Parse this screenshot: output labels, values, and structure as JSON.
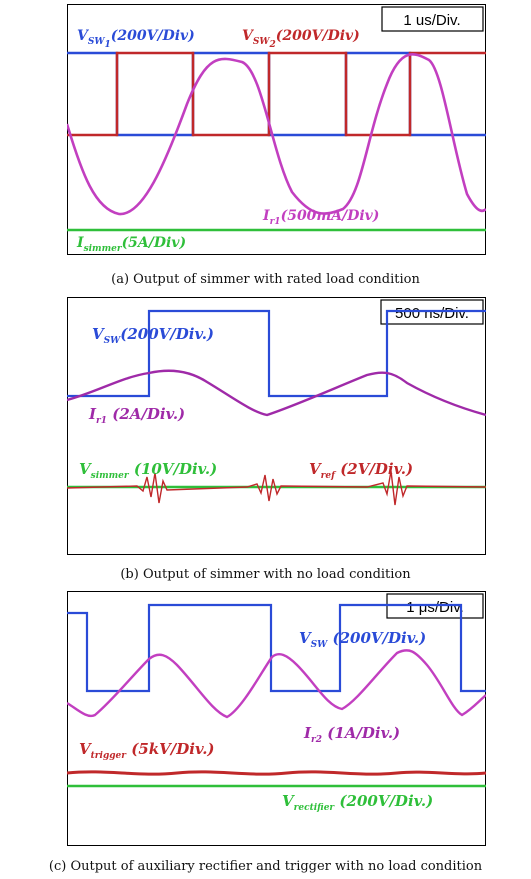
{
  "captions": {
    "a": "(a) Output of simmer with rated load condition",
    "b": "(b) Output of simmer with no load condition",
    "c": "(c) Output of auxiliary rectifier and trigger with no load condition"
  },
  "colors": {
    "blue": "#2a4bd7",
    "red": "#c0282a",
    "magenta": "#c23fc0",
    "purple": "#9f2aa8",
    "green": "#2fbf3a"
  },
  "chart_data": [
    {
      "type": "line",
      "panel": "a",
      "timebase": "1 us/Div.",
      "x_divisions": 10,
      "y_divisions": 8,
      "grid": false,
      "series": [
        {
          "name_main": "V",
          "name_sub": "SW",
          "name_subsub": "1",
          "scale": "(200V/Div)",
          "color": "#2a4bd7",
          "x": [
            0,
            2.6,
            2.6,
            5.0,
            5.0,
            7.4,
            7.4,
            9.8,
            9.8,
            10
          ],
          "y": [
            3.4,
            3.4,
            0.0,
            0.0,
            3.4,
            3.4,
            0.0,
            0.0,
            3.4,
            3.4
          ]
        },
        {
          "name_main": "V",
          "name_sub": "SW",
          "name_subsub": "2",
          "scale": "(200V/Div)",
          "color": "#c0282a",
          "x": [
            0,
            2.6,
            2.6,
            5.0,
            5.0,
            7.4,
            7.4,
            9.8,
            9.8,
            10
          ],
          "y": [
            0.0,
            0.0,
            3.4,
            3.4,
            0.0,
            0.0,
            3.4,
            3.4,
            0.0,
            0.0
          ]
        },
        {
          "name_main": "I",
          "name_sub": "r1",
          "scale": "(500mA/Div)",
          "color": "#c23fc0",
          "x": [
            0,
            0.6,
            1.3,
            2.0,
            2.6,
            3.2,
            3.8,
            4.4,
            5.0,
            5.6,
            6.2,
            6.8,
            7.4,
            8.0,
            8.6,
            9.2,
            9.8,
            10
          ],
          "y": [
            -0.6,
            -2.8,
            -3.7,
            -2.6,
            -0.2,
            2.8,
            3.6,
            2.4,
            0.2,
            -2.7,
            -3.7,
            -2.5,
            -0.1,
            2.8,
            3.6,
            2.4,
            0.1,
            -0.6
          ]
        },
        {
          "name_main": "I",
          "name_sub": "simmer",
          "scale": "(5A/Div)",
          "color": "#2fbf3a",
          "x": [
            0,
            10
          ],
          "y": [
            0,
            0
          ]
        }
      ]
    },
    {
      "type": "line",
      "panel": "b",
      "timebase": "500 ns/Div.",
      "x_divisions": 10,
      "y_divisions": 8,
      "grid": false,
      "series": [
        {
          "name_main": "V",
          "name_sub": "SW",
          "scale": "(200V/Div.)",
          "color": "#2a4bd7",
          "x": [
            0,
            1.9,
            1.9,
            4.8,
            4.8,
            7.7,
            7.7,
            10
          ],
          "y": [
            0.0,
            0.0,
            3.4,
            3.4,
            0.0,
            0.0,
            3.4,
            3.4
          ]
        },
        {
          "name_main": "I",
          "name_sub": "r1",
          "scale": " (2A/Div.)",
          "color": "#9f2aa8",
          "x": [
            0,
            1.0,
            1.9,
            2.4,
            3.4,
            4.8,
            5.8,
            6.8,
            7.7,
            8.2,
            9.2,
            10
          ],
          "y": [
            -0.8,
            -0.3,
            0.2,
            0.6,
            0.4,
            -0.4,
            -0.2,
            0.3,
            0.8,
            0.6,
            0.0,
            -0.6
          ]
        },
        {
          "name_main": "V",
          "name_sub": "simmer",
          "scale": " (10V/Div.)",
          "color": "#2fbf3a",
          "x": [
            0,
            10
          ],
          "y": [
            0,
            0
          ]
        },
        {
          "name_main": "V",
          "name_sub": "ref",
          "scale": " (2V/Div.)",
          "color": "#c0282a",
          "x": [
            0,
            10
          ],
          "y": [
            0,
            0
          ]
        }
      ]
    },
    {
      "type": "line",
      "panel": "c",
      "timebase": "1 μs/Div.",
      "x_divisions": 10,
      "y_divisions": 8,
      "grid": false,
      "series": [
        {
          "name_main": "V",
          "name_sub": "SW",
          "scale": " (200V/Div.)",
          "color": "#2a4bd7",
          "x": [
            0,
            0.4,
            0.4,
            1.9,
            1.9,
            4.8,
            4.8,
            6.6,
            6.6,
            9.4,
            9.4,
            10
          ],
          "y": [
            3.4,
            3.4,
            0.0,
            0.0,
            3.4,
            3.4,
            0.0,
            0.0,
            3.4,
            3.4,
            0.0,
            0.0
          ]
        },
        {
          "name_main": "I",
          "name_sub": "r2",
          "scale": " (1A/Div.)",
          "color": "#c23fc0",
          "x": [
            0,
            0.5,
            1.9,
            2.2,
            3.5,
            4.8,
            5.1,
            6.6,
            7.0,
            8.3,
            9.4,
            10
          ],
          "y": [
            -0.6,
            -1.5,
            0.8,
            1.0,
            -1.3,
            1.2,
            1.3,
            -1.4,
            0.5,
            1.2,
            -1.2,
            -0.6
          ]
        },
        {
          "name_main": "V",
          "name_sub": "trigger",
          "scale": " (5kV/Div.)",
          "color": "#c0282a",
          "x": [
            0,
            10
          ],
          "y": [
            0,
            0
          ]
        },
        {
          "name_main": "V",
          "name_sub": "rectifier",
          "scale": " (200V/Div.)",
          "color": "#2fbf3a",
          "x": [
            0,
            10
          ],
          "y": [
            0,
            0
          ]
        }
      ]
    }
  ]
}
